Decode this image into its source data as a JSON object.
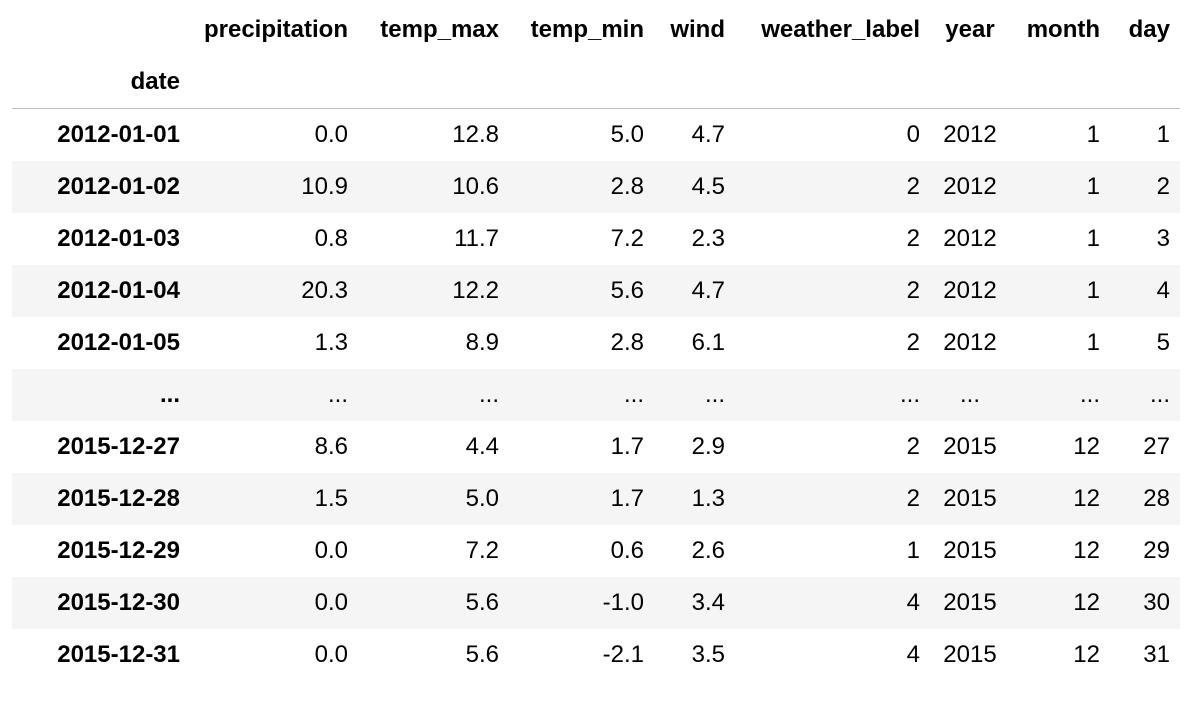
{
  "table": {
    "index_name": "date",
    "columns": [
      "precipitation",
      "temp_max",
      "temp_min",
      "wind",
      "weather_label",
      "year",
      "month",
      "day"
    ],
    "rows": [
      {
        "index": "2012-01-01",
        "cells": [
          "0.0",
          "12.8",
          "5.0",
          "4.7",
          "0",
          "2012",
          "1",
          "1"
        ]
      },
      {
        "index": "2012-01-02",
        "cells": [
          "10.9",
          "10.6",
          "2.8",
          "4.5",
          "2",
          "2012",
          "1",
          "2"
        ]
      },
      {
        "index": "2012-01-03",
        "cells": [
          "0.8",
          "11.7",
          "7.2",
          "2.3",
          "2",
          "2012",
          "1",
          "3"
        ]
      },
      {
        "index": "2012-01-04",
        "cells": [
          "20.3",
          "12.2",
          "5.6",
          "4.7",
          "2",
          "2012",
          "1",
          "4"
        ]
      },
      {
        "index": "2012-01-05",
        "cells": [
          "1.3",
          "8.9",
          "2.8",
          "6.1",
          "2",
          "2012",
          "1",
          "5"
        ]
      },
      {
        "index": "...",
        "cells": [
          "...",
          "...",
          "...",
          "...",
          "...",
          "...",
          "...",
          "..."
        ]
      },
      {
        "index": "2015-12-27",
        "cells": [
          "8.6",
          "4.4",
          "1.7",
          "2.9",
          "2",
          "2015",
          "12",
          "27"
        ]
      },
      {
        "index": "2015-12-28",
        "cells": [
          "1.5",
          "5.0",
          "1.7",
          "1.3",
          "2",
          "2015",
          "12",
          "28"
        ]
      },
      {
        "index": "2015-12-29",
        "cells": [
          "0.0",
          "7.2",
          "0.6",
          "2.6",
          "1",
          "2015",
          "12",
          "29"
        ]
      },
      {
        "index": "2015-12-30",
        "cells": [
          "0.0",
          "5.6",
          "-1.0",
          "3.4",
          "4",
          "2015",
          "12",
          "30"
        ]
      },
      {
        "index": "2015-12-31",
        "cells": [
          "0.0",
          "5.6",
          "-2.1",
          "3.5",
          "4",
          "2015",
          "12",
          "31"
        ]
      }
    ]
  }
}
